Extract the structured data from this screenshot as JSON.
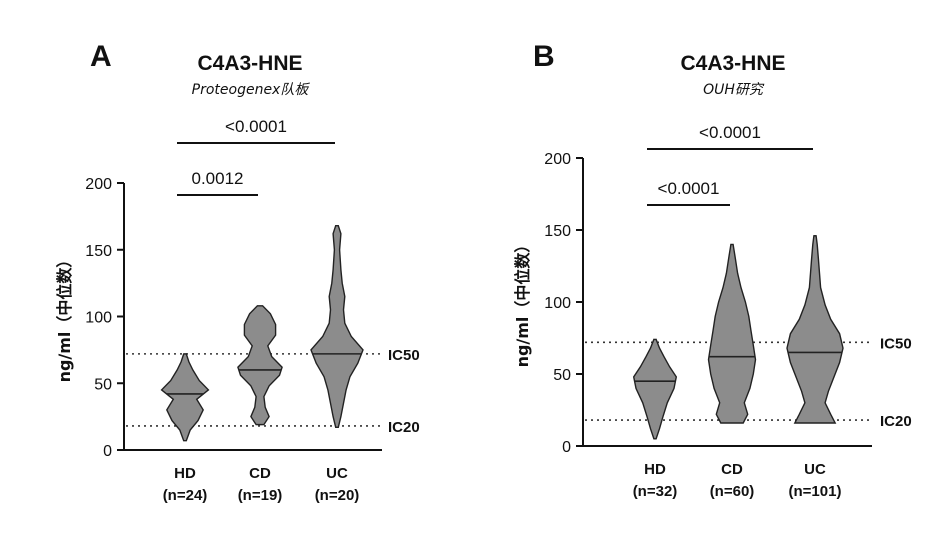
{
  "chart_data": [
    {
      "panel": "A",
      "type": "violin",
      "title": "C4A3-HNE",
      "subtitle": "Proteogenex队板",
      "ylabel": "ng/ml（中位数）",
      "ylim": [
        0,
        200
      ],
      "yticks": [
        0,
        50,
        100,
        150,
        200
      ],
      "reference_lines": [
        {
          "label": "IC50",
          "value": 72
        },
        {
          "label": "IC20",
          "value": 18
        }
      ],
      "groups": [
        {
          "name": "HD",
          "n_label": "(n=24)",
          "min": 7,
          "max": 72,
          "median": 42,
          "profile": [
            [
              7,
              1
            ],
            [
              15,
              4
            ],
            [
              22,
              10
            ],
            [
              30,
              14
            ],
            [
              38,
              9
            ],
            [
              45,
              18
            ],
            [
              52,
              11
            ],
            [
              60,
              6
            ],
            [
              66,
              3
            ],
            [
              72,
              1
            ]
          ]
        },
        {
          "name": "CD",
          "n_label": "(n=19)",
          "min": 19,
          "max": 108,
          "median": 60,
          "profile": [
            [
              19,
              3
            ],
            [
              25,
              7
            ],
            [
              32,
              4
            ],
            [
              40,
              3
            ],
            [
              48,
              7
            ],
            [
              56,
              15
            ],
            [
              62,
              17
            ],
            [
              70,
              9
            ],
            [
              78,
              6
            ],
            [
              86,
              12
            ],
            [
              94,
              12
            ],
            [
              102,
              8
            ],
            [
              108,
              2
            ]
          ]
        },
        {
          "name": "UC",
          "n_label": "(n=20)",
          "min": 17,
          "max": 168,
          "median": 72,
          "profile": [
            [
              17,
              1
            ],
            [
              25,
              3
            ],
            [
              35,
              5
            ],
            [
              45,
              7
            ],
            [
              55,
              10
            ],
            [
              65,
              16
            ],
            [
              75,
              20
            ],
            [
              85,
              11
            ],
            [
              95,
              6
            ],
            [
              105,
              5
            ],
            [
              115,
              6
            ],
            [
              125,
              4
            ],
            [
              135,
              3
            ],
            [
              150,
              2
            ],
            [
              162,
              3
            ],
            [
              168,
              1
            ]
          ]
        }
      ],
      "comparisons": [
        {
          "groups": [
            "HD",
            "CD"
          ],
          "p_label": "0.0012"
        },
        {
          "groups": [
            "HD",
            "UC"
          ],
          "p_label": "<0.0001"
        }
      ]
    },
    {
      "panel": "B",
      "type": "violin",
      "title": "C4A3-HNE",
      "subtitle": "OUH研究",
      "ylabel": "ng/ml（中位数）",
      "ylim": [
        0,
        200
      ],
      "yticks": [
        0,
        50,
        100,
        150,
        200
      ],
      "reference_lines": [
        {
          "label": "IC50",
          "value": 72
        },
        {
          "label": "IC20",
          "value": 18
        }
      ],
      "groups": [
        {
          "name": "HD",
          "n_label": "(n=32)",
          "min": 5,
          "max": 74,
          "median": 45,
          "profile": [
            [
              5,
              1
            ],
            [
              12,
              4
            ],
            [
              20,
              7
            ],
            [
              30,
              11
            ],
            [
              40,
              17
            ],
            [
              48,
              19
            ],
            [
              55,
              13
            ],
            [
              62,
              8
            ],
            [
              68,
              4
            ],
            [
              74,
              1
            ]
          ]
        },
        {
          "name": "CD",
          "n_label": "(n=60)",
          "min": 16,
          "max": 140,
          "median": 62,
          "profile": [
            [
              16,
              10
            ],
            [
              22,
              14
            ],
            [
              30,
              11
            ],
            [
              40,
              16
            ],
            [
              50,
              19
            ],
            [
              60,
              21
            ],
            [
              70,
              19
            ],
            [
              80,
              17
            ],
            [
              90,
              15
            ],
            [
              100,
              12
            ],
            [
              110,
              8
            ],
            [
              120,
              5
            ],
            [
              130,
              3
            ],
            [
              140,
              1
            ]
          ]
        },
        {
          "name": "UC",
          "n_label": "(n=101)",
          "min": 16,
          "max": 146,
          "median": 65,
          "profile": [
            [
              16,
              18
            ],
            [
              22,
              14
            ],
            [
              30,
              9
            ],
            [
              38,
              12
            ],
            [
              48,
              17
            ],
            [
              58,
              22
            ],
            [
              68,
              25
            ],
            [
              78,
              22
            ],
            [
              88,
              14
            ],
            [
              98,
              9
            ],
            [
              110,
              5
            ],
            [
              120,
              4
            ],
            [
              130,
              3
            ],
            [
              140,
              2
            ],
            [
              146,
              1
            ]
          ]
        }
      ],
      "comparisons": [
        {
          "groups": [
            "HD",
            "CD"
          ],
          "p_label": "<0.0001"
        },
        {
          "groups": [
            "HD",
            "UC"
          ],
          "p_label": "<0.0001"
        }
      ]
    }
  ]
}
